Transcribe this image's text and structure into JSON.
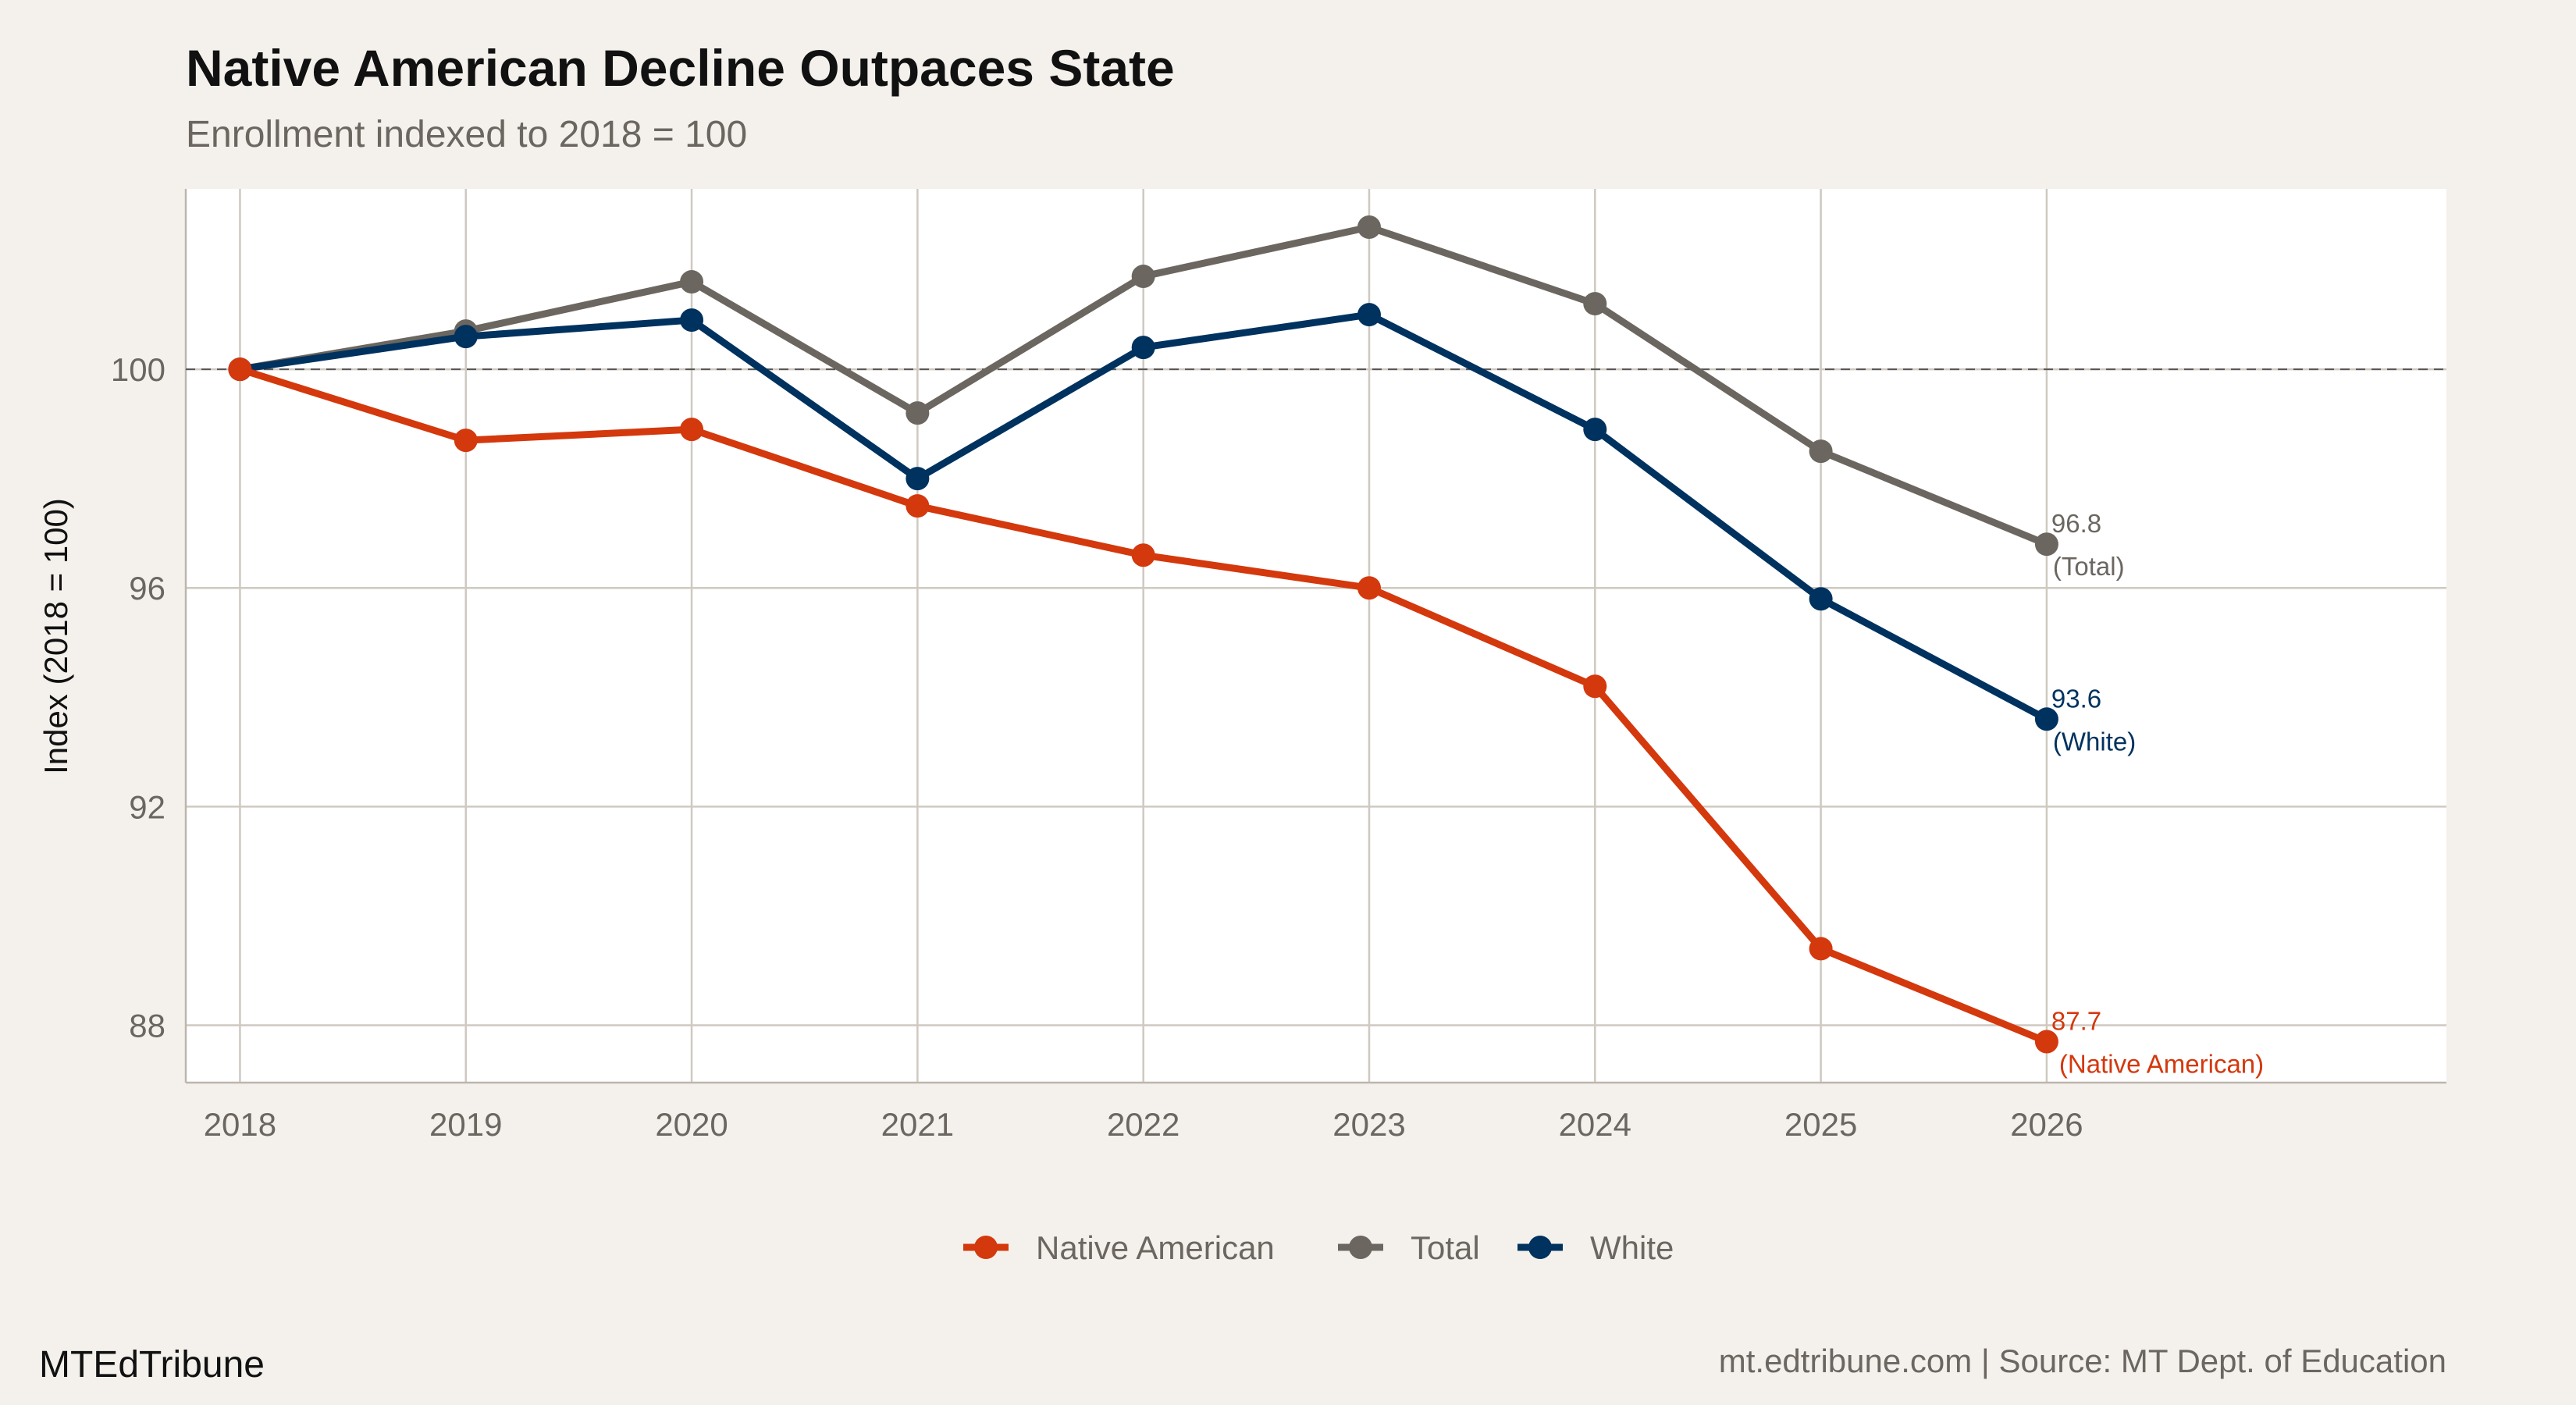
{
  "title": "Native American Decline Outpaces State",
  "subtitle": "Enrollment indexed to 2018 = 100",
  "brand": "MTEdTribune",
  "source": "mt.edtribune.com | Source: MT Dept. of Education",
  "colors": {
    "background": "#f4f1ec",
    "panel": "#ffffff",
    "grid": "#cfc9c0",
    "Native American": "#d4380d",
    "Total": "#6b6660",
    "White": "#00325f"
  },
  "chart_data": {
    "type": "line",
    "title": "Native American Decline Outpaces State",
    "subtitle": "Enrollment indexed to 2018 = 100",
    "xlabel": "",
    "ylabel": "Index (2018 = 100)",
    "x": [
      2018,
      2019,
      2020,
      2021,
      2022,
      2023,
      2024,
      2025,
      2026
    ],
    "xticks": [
      "2018",
      "2019",
      "2020",
      "2021",
      "2022",
      "2023",
      "2024",
      "2025",
      "2026"
    ],
    "yticks": [
      "88",
      "92",
      "96",
      "100"
    ],
    "ytick_values": [
      88,
      92,
      96,
      100
    ],
    "xlim": [
      2017.76,
      2027.77
    ],
    "ylim": [
      86.95,
      103.3
    ],
    "grid": true,
    "reference_line": {
      "y": 100,
      "style": "dashed"
    },
    "legend_placement": "bottom",
    "series": [
      {
        "name": "Native American",
        "values": [
          100,
          98.7,
          98.9,
          97.5,
          96.6,
          96.0,
          94.2,
          89.4,
          87.7
        ],
        "end_label": "87.7",
        "end_sublabel": "(Native American)"
      },
      {
        "name": "Total",
        "values": [
          100,
          100.7,
          101.6,
          99.2,
          101.7,
          102.6,
          101.2,
          98.5,
          96.8
        ],
        "end_label": "96.8",
        "end_sublabel": "(Total)"
      },
      {
        "name": "White",
        "values": [
          100,
          100.6,
          100.9,
          98.0,
          100.4,
          101.0,
          98.9,
          95.8,
          93.6
        ],
        "end_label": "93.6",
        "end_sublabel": "(White)"
      }
    ]
  }
}
